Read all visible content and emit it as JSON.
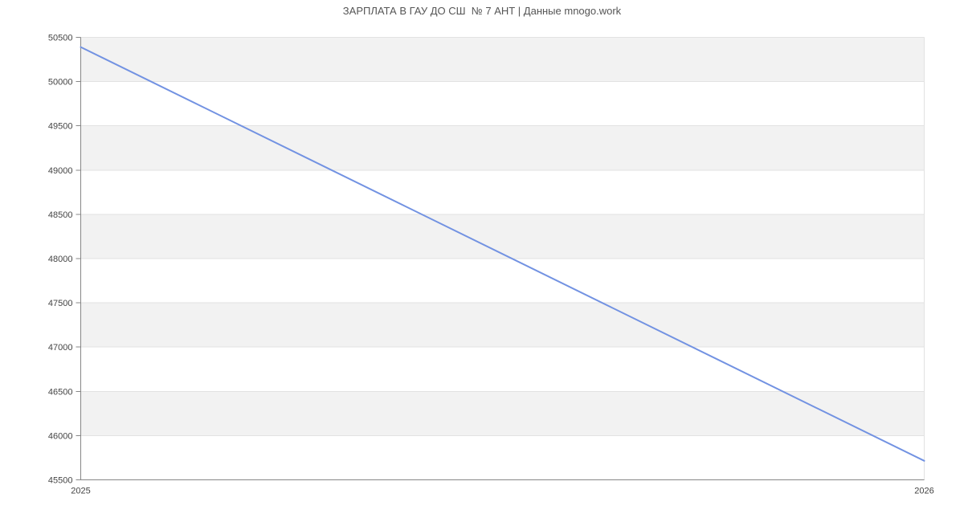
{
  "title": "ЗАРПЛАТА В ГАУ ДО СШ  № 7 АНТ | Данные mnogo.work",
  "chart_data": {
    "type": "line",
    "title": "ЗАРПЛАТА В ГАУ ДО СШ  № 7 АНТ | Данные mnogo.work",
    "x": [
      "2025",
      "2026"
    ],
    "values": [
      50390,
      45715
    ],
    "xlabel": "",
    "ylabel": "",
    "ylim": [
      45500,
      50500
    ],
    "yticks": [
      45500,
      46000,
      46500,
      47000,
      47500,
      48000,
      48500,
      49000,
      49500,
      50000,
      50500
    ],
    "grid": true,
    "legend": "none",
    "plot_bands": "alternating horizontal stripes between y gridlines, gray band at top pair (50000-50500) and every other pair below",
    "colors": {
      "line": "#7292e2",
      "band": "#f2f2f2",
      "gridline": "#e2e2e2",
      "axis": "#878787",
      "tick_label": "#444444",
      "title": "#555555",
      "background": "#ffffff"
    }
  }
}
